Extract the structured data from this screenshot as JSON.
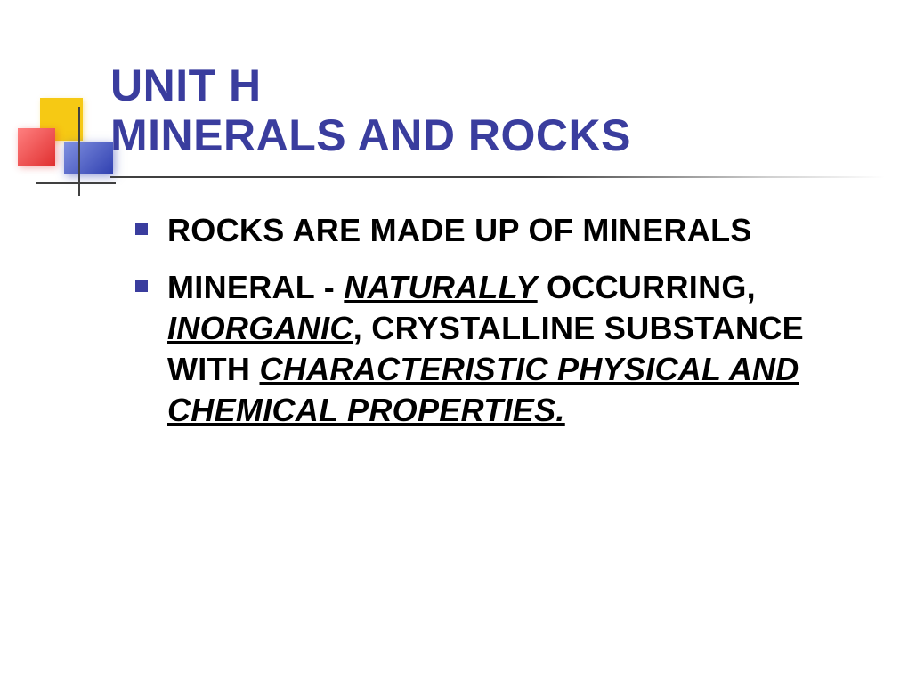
{
  "colors": {
    "title_color": "#3a3d9e",
    "bullet_color": "#3a3d9e",
    "text_color": "#000000",
    "background": "#ffffff",
    "accent_yellow": "#f6c914",
    "accent_red": "#e03030",
    "accent_blue": "#3040b0",
    "line_color": "#404040"
  },
  "typography": {
    "title_fontsize": 50,
    "body_fontsize": 36,
    "font_family": "Verdana",
    "title_weight": 900,
    "body_weight": 900
  },
  "title": {
    "line1": "UNIT H",
    "line2": "MINERALS AND ROCKS"
  },
  "bullets": [
    {
      "segments": [
        {
          "text": "ROCKS ARE MADE UP OF MINERALS",
          "style": "plain"
        }
      ]
    },
    {
      "segments": [
        {
          "text": "MINERAL - ",
          "style": "plain"
        },
        {
          "text": "NATURALLY",
          "style": "emph"
        },
        {
          "text": " OCCURRING, ",
          "style": "plain"
        },
        {
          "text": "INORGANIC",
          "style": "emph"
        },
        {
          "text": ", CRYSTALLINE SUBSTANCE WITH ",
          "style": "plain"
        },
        {
          "text": "CHARACTERISTIC PHYSICAL AND CHEMICAL PROPERTIES.",
          "style": "emph"
        }
      ]
    }
  ]
}
